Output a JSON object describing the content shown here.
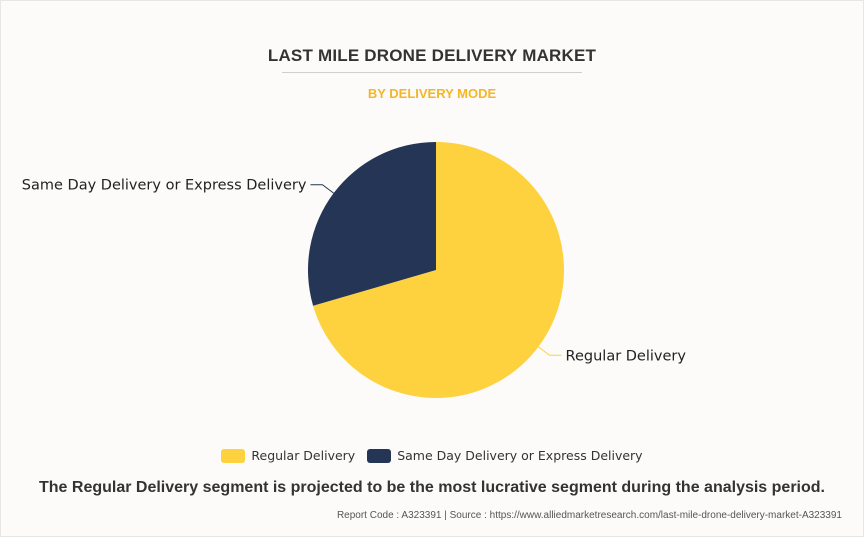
{
  "header": {
    "title": "LAST MILE DRONE DELIVERY MARKET",
    "subtitle": "BY DELIVERY MODE"
  },
  "chart_data": {
    "type": "pie",
    "title": "LAST MILE DRONE DELIVERY MARKET",
    "subtitle": "BY DELIVERY MODE",
    "categories": [
      "Regular Delivery",
      "Same Day Delivery or Express Delivery"
    ],
    "values": [
      70.5,
      29.5
    ],
    "colors": [
      "#fdd23e",
      "#243555"
    ],
    "legend": "bottom"
  },
  "footer": {
    "caption": "The Regular Delivery segment is projected to be the most lucrative segment during the analysis period.",
    "source": "Report Code : A323391  |  Source : https://www.alliedmarketresearch.com/last-mile-drone-delivery-market-A323391"
  }
}
